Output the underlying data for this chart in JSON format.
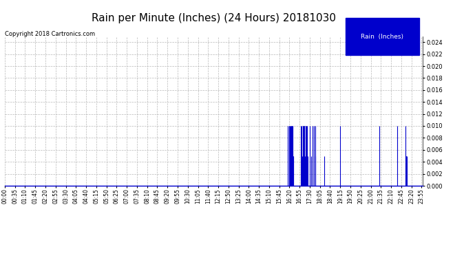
{
  "title": "Rain per Minute (Inches) (24 Hours) 20181030",
  "copyright_text": "Copyright 2018 Cartronics.com",
  "legend_label": "Rain  (Inches)",
  "legend_bg": "#0000cc",
  "legend_text_color": "#ffffff",
  "line_color": "#0000cc",
  "background_color": "#ffffff",
  "grid_color": "#b0b0b0",
  "ylim": [
    0.0,
    0.025
  ],
  "yticks": [
    0.0,
    0.002,
    0.004,
    0.006,
    0.008,
    0.01,
    0.012,
    0.014,
    0.016,
    0.018,
    0.02,
    0.022,
    0.024
  ],
  "title_fontsize": 11,
  "tick_fontsize": 5.5,
  "copyright_fontsize": 6.0,
  "rain_events": [
    {
      "minute": 975,
      "value": 0.01
    },
    {
      "minute": 978,
      "value": 0.01
    },
    {
      "minute": 980,
      "value": 0.01
    },
    {
      "minute": 981,
      "value": 0.005
    },
    {
      "minute": 982,
      "value": 0.01
    },
    {
      "minute": 983,
      "value": 0.01
    },
    {
      "minute": 985,
      "value": 0.01
    },
    {
      "minute": 986,
      "value": 0.01
    },
    {
      "minute": 988,
      "value": 0.01
    },
    {
      "minute": 989,
      "value": 0.005
    },
    {
      "minute": 990,
      "value": 0.01
    },
    {
      "minute": 991,
      "value": 0.01
    },
    {
      "minute": 993,
      "value": 0.005
    },
    {
      "minute": 994,
      "value": 0.005
    },
    {
      "minute": 1020,
      "value": 0.01
    },
    {
      "minute": 1021,
      "value": 0.01
    },
    {
      "minute": 1025,
      "value": 0.005
    },
    {
      "minute": 1026,
      "value": 0.01
    },
    {
      "minute": 1027,
      "value": 0.01
    },
    {
      "minute": 1028,
      "value": 0.01
    },
    {
      "minute": 1029,
      "value": 0.01
    },
    {
      "minute": 1030,
      "value": 0.01
    },
    {
      "minute": 1032,
      "value": 0.01
    },
    {
      "minute": 1033,
      "value": 0.005
    },
    {
      "minute": 1035,
      "value": 0.01
    },
    {
      "minute": 1036,
      "value": 0.01
    },
    {
      "minute": 1038,
      "value": 0.01
    },
    {
      "minute": 1039,
      "value": 0.005
    },
    {
      "minute": 1040,
      "value": 0.01
    },
    {
      "minute": 1042,
      "value": 0.005
    },
    {
      "minute": 1050,
      "value": 0.01
    },
    {
      "minute": 1055,
      "value": 0.005
    },
    {
      "minute": 1060,
      "value": 0.01
    },
    {
      "minute": 1065,
      "value": 0.01
    },
    {
      "minute": 1068,
      "value": 0.01
    },
    {
      "minute": 1070,
      "value": 0.005
    },
    {
      "minute": 1100,
      "value": 0.005
    },
    {
      "minute": 1155,
      "value": 0.01
    },
    {
      "minute": 1290,
      "value": 0.01
    },
    {
      "minute": 1350,
      "value": 0.01
    },
    {
      "minute": 1380,
      "value": 0.01
    },
    {
      "minute": 1381,
      "value": 0.005
    },
    {
      "minute": 1382,
      "value": 0.005
    },
    {
      "minute": 1384,
      "value": 0.005
    }
  ]
}
